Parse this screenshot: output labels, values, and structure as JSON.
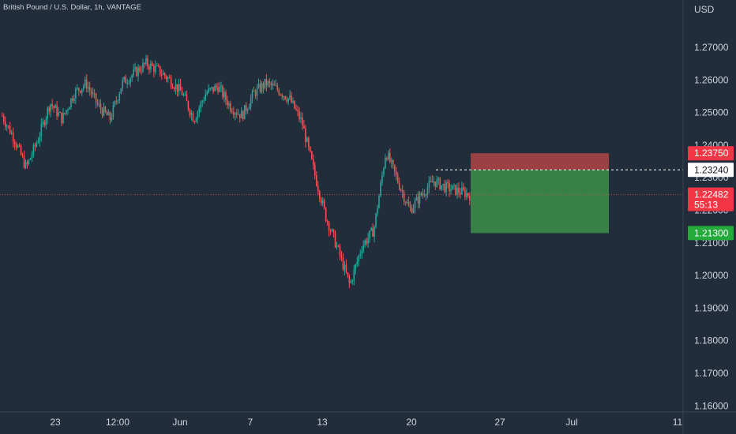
{
  "header": {
    "title": "British Pound / U.S. Dollar, 1h, VANTAGE"
  },
  "price_axis": {
    "currency": "USD"
  },
  "colors": {
    "background": "#212d3b",
    "grid": "#2a3646",
    "up": "#26a69a",
    "down": "#ef5350",
    "text": "#d1d4dc",
    "stop_zone": "#b24545",
    "target_zone": "#3c8f4a",
    "stop_badge": "#f23645",
    "target_badge": "#22ab3a",
    "entry_badge": "#ffffff"
  },
  "chart_data": {
    "type": "candlestick",
    "title": "British Pound / U.S. Dollar, 1h, VANTAGE",
    "symbol": "GBPUSD",
    "interval": "1h",
    "ylim": [
      1.16,
      1.28
    ],
    "y_ticks": [
      "1.27000",
      "1.26000",
      "1.25000",
      "1.24000",
      "1.23000",
      "1.22000",
      "1.21000",
      "1.20000",
      "1.19000",
      "1.18000",
      "1.17000",
      "1.16000"
    ],
    "x_ticks": [
      "23",
      "12:00",
      "Jun",
      "7",
      "13",
      "20",
      "27",
      "Jul",
      "11"
    ],
    "grid": false,
    "price_path": [
      [
        "May 18",
        1.249
      ],
      [
        "May 19",
        1.242
      ],
      [
        "May 20",
        1.233
      ],
      [
        "May 21",
        1.242
      ],
      [
        "May 22",
        1.253
      ],
      [
        "May 23",
        1.248
      ],
      [
        "May 24",
        1.256
      ],
      [
        "May 25",
        1.259
      ],
      [
        "May 26",
        1.252
      ],
      [
        "May 27",
        1.248
      ],
      [
        "May 28",
        1.259
      ],
      [
        "May 29",
        1.262
      ],
      [
        "May 30",
        1.265
      ],
      [
        "May 31",
        1.263
      ],
      [
        "Jun 1",
        1.26
      ],
      [
        "Jun 2",
        1.256
      ],
      [
        "Jun 3",
        1.248
      ],
      [
        "Jun 4",
        1.256
      ],
      [
        "Jun 5",
        1.258
      ],
      [
        "Jun 6",
        1.252
      ],
      [
        "Jun 7",
        1.249
      ],
      [
        "Jun 8",
        1.256
      ],
      [
        "Jun 9",
        1.259
      ],
      [
        "Jun 10",
        1.257
      ],
      [
        "Jun 11",
        1.254
      ],
      [
        "Jun 12",
        1.247
      ],
      [
        "Jun 13",
        1.232
      ],
      [
        "Jun 14",
        1.218
      ],
      [
        "Jun 15",
        1.208
      ],
      [
        "Jun 16",
        1.197
      ],
      [
        "Jun 17",
        1.209
      ],
      [
        "Jun 18",
        1.214
      ],
      [
        "Jun 19",
        1.238
      ],
      [
        "Jun 20",
        1.229
      ],
      [
        "Jun 21",
        1.22
      ],
      [
        "Jun 22",
        1.225
      ],
      [
        "Jun 23",
        1.229
      ],
      [
        "Jun 24",
        1.227
      ],
      [
        "Jun 25",
        1.226
      ],
      [
        "Jun 26",
        1.2248
      ]
    ],
    "current_price": {
      "value": "1.22482",
      "countdown": "55:13"
    },
    "position": {
      "type": "short",
      "entry": "1.23240",
      "stop": "1.23750",
      "target": "1.21300"
    }
  }
}
